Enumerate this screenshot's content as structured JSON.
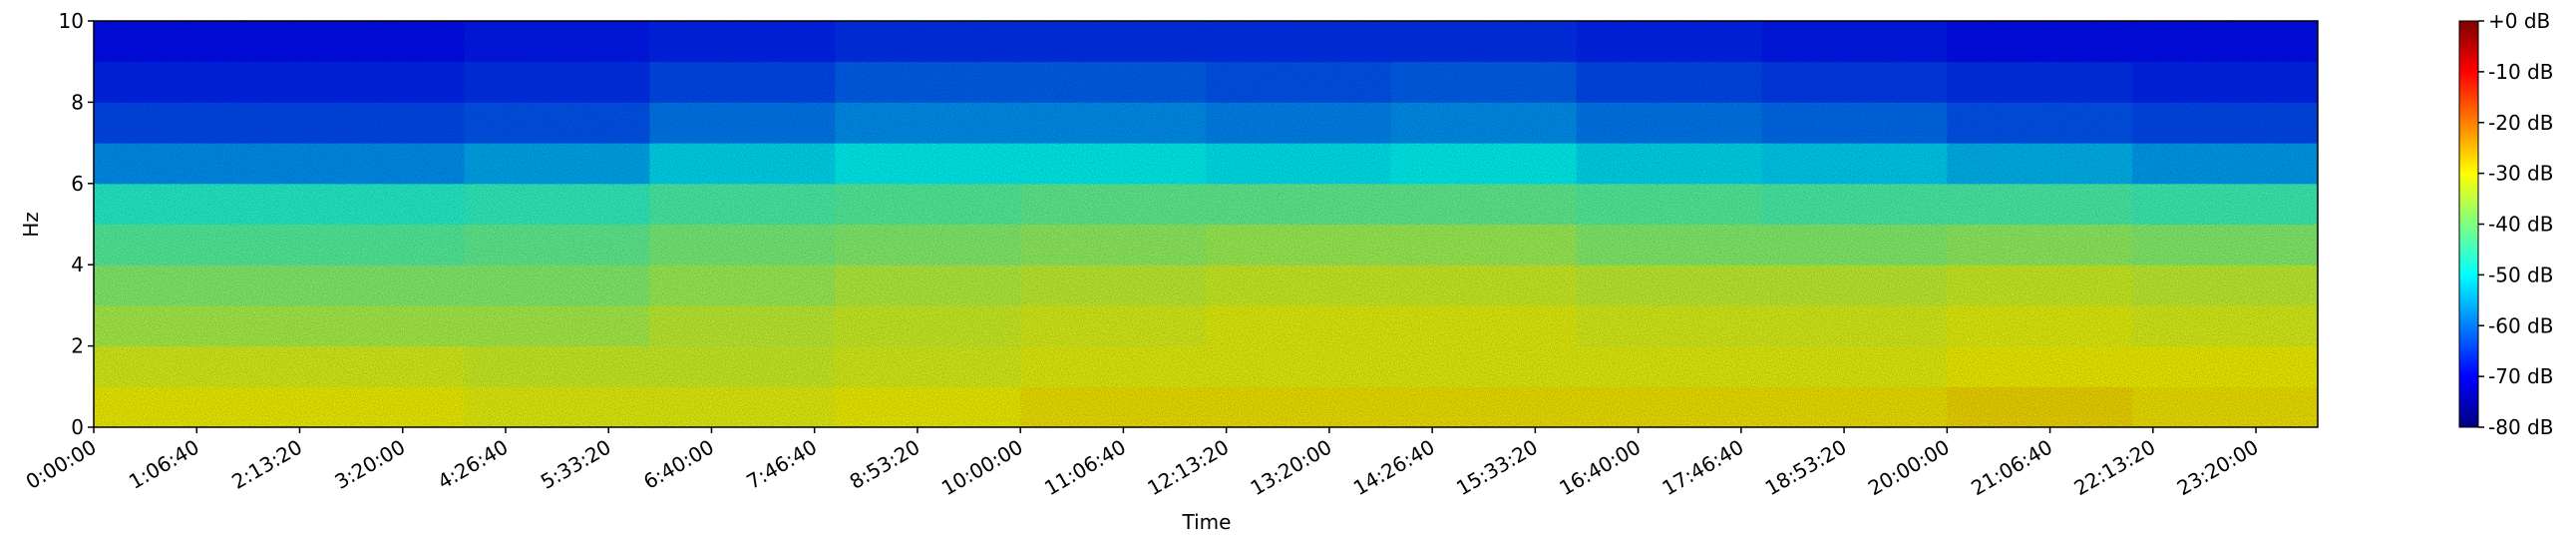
{
  "chart_data": {
    "type": "spectrogram",
    "x_label": "Time",
    "y_label": "Hz",
    "time_bins": [
      0,
      7200,
      14400,
      21600,
      28800,
      36000,
      43200,
      50400,
      57600,
      64800,
      72000,
      79200,
      86400
    ],
    "frequency_bins": [
      0,
      1,
      2,
      3,
      4,
      5,
      6,
      7,
      8,
      9,
      10
    ],
    "values": [
      [
        -30,
        -30,
        -31,
        -31,
        -30,
        -29,
        -29,
        -29,
        -29,
        -29,
        -28,
        -29
      ],
      [
        -32,
        -32,
        -33,
        -33,
        -32,
        -31,
        -31,
        -31,
        -31,
        -31,
        -30,
        -30
      ],
      [
        -36,
        -36,
        -36,
        -34,
        -33,
        -32,
        -31,
        -31,
        -32,
        -32,
        -31,
        -32
      ],
      [
        -39,
        -39,
        -39,
        -37,
        -35,
        -34,
        -33,
        -33,
        -34,
        -34,
        -33,
        -34
      ],
      [
        -43,
        -43,
        -42,
        -40,
        -39,
        -38,
        -37,
        -37,
        -39,
        -39,
        -38,
        -39
      ],
      [
        -47,
        -47,
        -46,
        -44,
        -43,
        -42,
        -42,
        -42,
        -43,
        -44,
        -44,
        -45
      ],
      [
        -58,
        -58,
        -56,
        -52,
        -50,
        -50,
        -51,
        -50,
        -52,
        -53,
        -55,
        -57
      ],
      [
        -64,
        -64,
        -63,
        -60,
        -58,
        -58,
        -59,
        -58,
        -60,
        -61,
        -63,
        -64
      ],
      [
        -67,
        -67,
        -66,
        -64,
        -62,
        -62,
        -63,
        -62,
        -64,
        -65,
        -66,
        -67
      ],
      [
        -69,
        -69,
        -68,
        -67,
        -66,
        -66,
        -66,
        -66,
        -67,
        -68,
        -69,
        -69
      ]
    ],
    "colormap": "jet",
    "clim": [
      -80,
      0
    ],
    "colorbar_ticks": [
      {
        "value": 0,
        "label": "+0 dB"
      },
      {
        "value": -10,
        "label": "-10 dB"
      },
      {
        "value": -20,
        "label": "-20 dB"
      },
      {
        "value": -30,
        "label": "-30 dB"
      },
      {
        "value": -40,
        "label": "-40 dB"
      },
      {
        "value": -50,
        "label": "-50 dB"
      },
      {
        "value": -60,
        "label": "-60 dB"
      },
      {
        "value": -70,
        "label": "-70 dB"
      },
      {
        "value": -80,
        "label": "-80 dB"
      }
    ],
    "xlim": [
      0,
      86400
    ],
    "ylim": [
      0,
      10
    ],
    "xticks": [
      {
        "value": 0,
        "label": "0:00:00"
      },
      {
        "value": 4000,
        "label": "1:06:40"
      },
      {
        "value": 8000,
        "label": "2:13:20"
      },
      {
        "value": 12000,
        "label": "3:20:00"
      },
      {
        "value": 16000,
        "label": "4:26:40"
      },
      {
        "value": 20000,
        "label": "5:33:20"
      },
      {
        "value": 24000,
        "label": "6:40:00"
      },
      {
        "value": 28000,
        "label": "7:46:40"
      },
      {
        "value": 32000,
        "label": "8:53:20"
      },
      {
        "value": 36000,
        "label": "10:00:00"
      },
      {
        "value": 40000,
        "label": "11:06:40"
      },
      {
        "value": 44000,
        "label": "12:13:20"
      },
      {
        "value": 48000,
        "label": "13:20:00"
      },
      {
        "value": 52000,
        "label": "14:26:40"
      },
      {
        "value": 56000,
        "label": "15:33:20"
      },
      {
        "value": 60000,
        "label": "16:40:00"
      },
      {
        "value": 64000,
        "label": "17:46:40"
      },
      {
        "value": 68000,
        "label": "18:53:20"
      },
      {
        "value": 72000,
        "label": "20:00:00"
      },
      {
        "value": 76000,
        "label": "21:06:40"
      },
      {
        "value": 80000,
        "label": "22:13:20"
      },
      {
        "value": 84000,
        "label": "23:20:00"
      }
    ],
    "yticks": [
      0,
      2,
      4,
      6,
      8,
      10
    ]
  }
}
